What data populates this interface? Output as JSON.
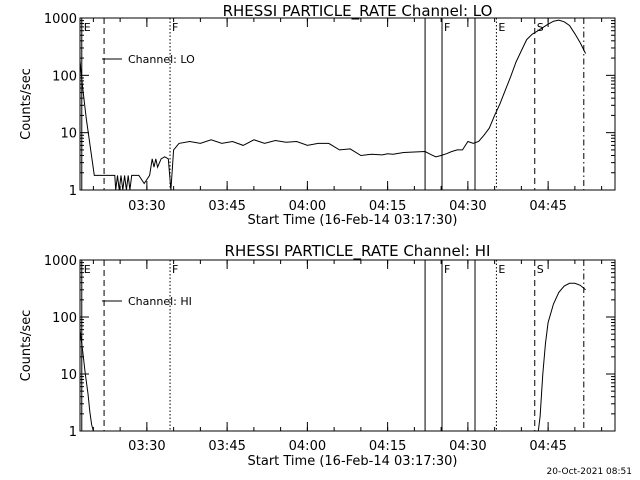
{
  "footer_date": "20-Oct-2021 08:51",
  "chart_data": [
    {
      "type": "line",
      "title": "RHESSI PARTICLE_RATE Channel: LO",
      "xlabel": "Start Time (16-Feb-14 03:17:30)",
      "ylabel": "Counts/sec",
      "y_scale": "log",
      "ylim": [
        1,
        1000
      ],
      "y_ticks": [
        {
          "value": 1,
          "label": "1"
        },
        {
          "value": 10,
          "label": "10"
        },
        {
          "value": 100,
          "label": "100"
        },
        {
          "value": 1000,
          "label": "1000"
        }
      ],
      "xlim": [
        "03:17:30",
        "04:57:30"
      ],
      "x_ticks": [
        {
          "value": "03:30",
          "label": "03:30"
        },
        {
          "value": "03:45",
          "label": "03:45"
        },
        {
          "value": "04:00",
          "label": "04:00"
        },
        {
          "value": "04:15",
          "label": "04:15"
        },
        {
          "value": "04:30",
          "label": "04:30"
        },
        {
          "value": "04:45",
          "label": "04:45"
        }
      ],
      "legend": {
        "label": "Channel: LO",
        "position": "top-left"
      },
      "flag_lines": [
        {
          "time": "03:17:50",
          "label": "E",
          "style": "solid"
        },
        {
          "time": "03:22:00",
          "label": "",
          "style": "dashed"
        },
        {
          "time": "03:34:20",
          "label": "F",
          "style": "dotted"
        },
        {
          "time": "04:22:00",
          "label": "",
          "style": "solid"
        },
        {
          "time": "04:25:10",
          "label": "F",
          "style": "solid"
        },
        {
          "time": "04:31:20",
          "label": "",
          "style": "solid"
        },
        {
          "time": "04:35:20",
          "label": "E",
          "style": "dotted"
        },
        {
          "time": "04:42:30",
          "label": "S",
          "style": "dashed"
        },
        {
          "time": "04:51:40",
          "label": "",
          "style": "dashdot"
        }
      ],
      "series": [
        {
          "x": [
            "03:17:30",
            "03:18:00",
            "03:18:40",
            "03:19:30",
            "03:20:10",
            "03:20:50",
            "03:21:30",
            "03:22:30",
            "03:23:30",
            "03:24:00",
            "03:24:10",
            "03:24:30",
            "03:24:50",
            "03:25:10",
            "03:25:30",
            "03:25:50",
            "03:26:10",
            "03:26:30",
            "03:26:50",
            "03:27:10",
            "03:27:30",
            "03:28:30",
            "03:29:30",
            "03:30:30",
            "03:31:00",
            "03:31:20",
            "03:31:40",
            "03:32:00",
            "03:32:40",
            "03:33:20",
            "03:34:00",
            "03:34:30",
            "03:35:00",
            "03:36:00",
            "03:38:00",
            "03:40:00",
            "03:42:00",
            "03:44:00",
            "03:46:00",
            "03:48:00",
            "03:50:00",
            "03:52:00",
            "03:54:00",
            "03:56:00",
            "03:58:00",
            "04:00:00",
            "04:02:00",
            "04:04:00",
            "04:06:00",
            "04:08:00",
            "04:10:00",
            "04:12:00",
            "04:14:00",
            "04:15:00",
            "04:16:00",
            "04:18:00",
            "04:20:00",
            "04:22:00",
            "04:23:00",
            "04:24:00",
            "04:25:00",
            "04:26:00",
            "04:27:00",
            "04:28:00",
            "04:29:00",
            "04:30:00",
            "04:31:00",
            "04:32:00",
            "04:33:00",
            "04:34:00",
            "04:35:00",
            "04:36:00",
            "04:37:00",
            "04:38:00",
            "04:39:00",
            "04:40:00",
            "04:41:00",
            "04:42:00",
            "04:43:00",
            "04:44:00",
            "04:45:00",
            "04:46:00",
            "04:47:00",
            "04:48:00",
            "04:49:00",
            "04:50:00",
            "04:51:00",
            "04:52:00"
          ],
          "values": [
            180,
            60,
            18,
            5,
            1.8,
            1.8,
            1.8,
            1.8,
            1.8,
            1.8,
            1,
            1.8,
            1,
            1.8,
            1,
            1.8,
            1,
            1.8,
            1,
            1.8,
            1.8,
            1.8,
            1.3,
            1.8,
            3.5,
            2.5,
            3.5,
            2.5,
            3.5,
            3.8,
            3.5,
            1,
            5,
            6.5,
            7,
            6.5,
            7.5,
            6.5,
            7,
            6,
            7.5,
            6.5,
            7.3,
            6.8,
            7,
            6,
            6.5,
            6.5,
            5,
            5.2,
            4,
            4.2,
            4.1,
            4.3,
            4.2,
            4.5,
            4.6,
            4.7,
            4.2,
            3.8,
            4,
            4.3,
            4.7,
            5,
            5,
            7,
            6.5,
            7,
            9,
            12,
            20,
            32,
            55,
            95,
            170,
            270,
            420,
            520,
            590,
            680,
            780,
            880,
            920,
            860,
            740,
            530,
            370,
            240
          ]
        }
      ]
    },
    {
      "type": "line",
      "title": "RHESSI PARTICLE_RATE Channel: HI",
      "xlabel": "Start Time (16-Feb-14 03:17:30)",
      "ylabel": "Counts/sec",
      "y_scale": "log",
      "ylim": [
        1,
        1000
      ],
      "y_ticks": [
        {
          "value": 1,
          "label": "1"
        },
        {
          "value": 10,
          "label": "10"
        },
        {
          "value": 100,
          "label": "100"
        },
        {
          "value": 1000,
          "label": "1000"
        }
      ],
      "xlim": [
        "03:17:30",
        "04:57:30"
      ],
      "x_ticks": [
        {
          "value": "03:30",
          "label": "03:30"
        },
        {
          "value": "03:45",
          "label": "03:45"
        },
        {
          "value": "04:00",
          "label": "04:00"
        },
        {
          "value": "04:15",
          "label": "04:15"
        },
        {
          "value": "04:30",
          "label": "04:30"
        },
        {
          "value": "04:45",
          "label": "04:45"
        }
      ],
      "legend": {
        "label": "Channel: HI",
        "position": "top-left"
      },
      "flag_lines": [
        {
          "time": "03:17:50",
          "label": "E",
          "style": "solid"
        },
        {
          "time": "03:22:00",
          "label": "",
          "style": "dashed"
        },
        {
          "time": "03:34:20",
          "label": "F",
          "style": "dotted"
        },
        {
          "time": "04:22:00",
          "label": "",
          "style": "solid"
        },
        {
          "time": "04:25:10",
          "label": "F",
          "style": "solid"
        },
        {
          "time": "04:31:20",
          "label": "",
          "style": "solid"
        },
        {
          "time": "04:35:20",
          "label": "E",
          "style": "dotted"
        },
        {
          "time": "04:42:30",
          "label": "S",
          "style": "dashed"
        },
        {
          "time": "04:51:40",
          "label": "",
          "style": "dashdot"
        }
      ],
      "series": [
        {
          "x": [
            "03:17:30",
            "03:18:00",
            "03:18:30",
            "03:19:00",
            "03:19:20",
            "03:19:40",
            "03:20:00"
          ],
          "values": [
            60,
            25,
            10,
            4.5,
            2.2,
            1.3,
            1
          ]
        },
        {
          "x": [
            "04:43:10",
            "04:43:30",
            "04:44:00",
            "04:44:30",
            "04:45:00",
            "04:46:00",
            "04:47:00",
            "04:48:00",
            "04:49:00",
            "04:50:00",
            "04:51:00",
            "04:52:00"
          ],
          "values": [
            1,
            1.8,
            10,
            35,
            80,
            170,
            270,
            350,
            390,
            390,
            360,
            300
          ]
        }
      ]
    }
  ]
}
